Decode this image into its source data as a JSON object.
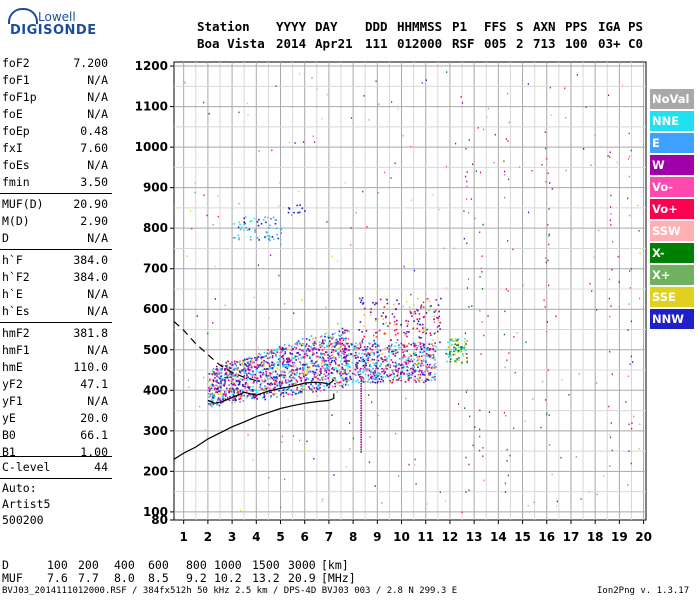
{
  "logo": {
    "brand_top": "Lowell",
    "brand_bottom": "DIGISONDE"
  },
  "header": {
    "labels": [
      "Station",
      "YYYY",
      "DAY",
      "DDD",
      "HHMMSS",
      "P1",
      "FFS",
      "S",
      "AXN",
      "PPS",
      "IGA",
      "PS"
    ],
    "values": [
      "Boa Vista",
      "2014",
      "Apr21",
      "111",
      "012000",
      "RSF",
      "005",
      "2",
      "713",
      "100",
      "03+",
      "C0"
    ]
  },
  "params": [
    {
      "k": "foF2",
      "v": "7.200"
    },
    {
      "k": "foF1",
      "v": "N/A"
    },
    {
      "k": "foF1p",
      "v": "N/A"
    },
    {
      "k": "foE",
      "v": "N/A"
    },
    {
      "k": "foEp",
      "v": "0.48"
    },
    {
      "k": "fxI",
      "v": "7.60"
    },
    {
      "k": "foEs",
      "v": "N/A"
    },
    {
      "k": "fmin",
      "v": "3.50"
    },
    {
      "k": "MUF(D)",
      "v": "20.90"
    },
    {
      "k": "M(D)",
      "v": "2.90"
    },
    {
      "k": "D",
      "v": "N/A"
    },
    {
      "k": "h`F",
      "v": "384.0"
    },
    {
      "k": "h`F2",
      "v": "384.0"
    },
    {
      "k": "h`E",
      "v": "N/A"
    },
    {
      "k": "h`Es",
      "v": "N/A"
    },
    {
      "k": "hmF2",
      "v": "381.8"
    },
    {
      "k": "hmF1",
      "v": "N/A"
    },
    {
      "k": "hmE",
      "v": "110.0"
    },
    {
      "k": "yF2",
      "v": "47.1"
    },
    {
      "k": "yF1",
      "v": "N/A"
    },
    {
      "k": "yE",
      "v": "20.0"
    },
    {
      "k": "B0",
      "v": "66.1"
    },
    {
      "k": "B1",
      "v": "1.00"
    },
    {
      "k": "C-level",
      "v": "44"
    }
  ],
  "auto": [
    "Auto:",
    "Artist5",
    "500200"
  ],
  "muf_table": {
    "d_label": "D",
    "d_values": [
      "100",
      "200",
      "400",
      "600",
      "800",
      "1000",
      "1500",
      "3000",
      "[km]"
    ],
    "muf_label": "MUF",
    "muf_values": [
      "7.6",
      "7.7",
      "8.0",
      "8.5",
      "9.2",
      "10.2",
      "13.2",
      "20.9",
      "[MHz]"
    ]
  },
  "footer": {
    "left": "BVJ03_2014111012000.RSF / 384fx512h 50 kHz 2.5 km / DPS-4D BVJ03 003 / 2.8 N 299.3 E",
    "right": "Ion2Png v. 1.3.17"
  },
  "legend": [
    {
      "label": "NoVal",
      "color": "#a9a9a9"
    },
    {
      "label": "NNE",
      "color": "#22e0f0"
    },
    {
      "label": "E",
      "color": "#3fa0ff"
    },
    {
      "label": "W",
      "color": "#a000a8"
    },
    {
      "label": "Vo-",
      "color": "#ff48b0"
    },
    {
      "label": "Vo+",
      "color": "#ff0050"
    },
    {
      "label": "SSW",
      "color": "#ffb0b0"
    },
    {
      "label": "X-",
      "color": "#008000"
    },
    {
      "label": "X+",
      "color": "#70b060"
    },
    {
      "label": "SSE",
      "color": "#e0d020"
    },
    {
      "label": "NNW",
      "color": "#2020c8"
    }
  ],
  "chart_data": {
    "type": "scatter",
    "title": "",
    "xlabel": "",
    "ylabel": "",
    "xlim": [
      0.6,
      20.1
    ],
    "ylim": [
      80,
      1210
    ],
    "x_ticks": [
      1,
      2,
      3,
      4,
      5,
      6,
      7,
      8,
      9,
      10,
      11,
      12,
      13,
      14,
      15,
      16,
      17,
      18,
      19,
      20
    ],
    "y_ticks": [
      80,
      100,
      200,
      300,
      400,
      500,
      600,
      700,
      800,
      900,
      1000,
      1100,
      1200
    ],
    "grid": true,
    "legend_position": "right",
    "series": [
      {
        "label": "traced-ionogram-trace",
        "color": "#000000",
        "style": "solid",
        "x": [
          2.0,
          2.3,
          2.6,
          3.0,
          3.5,
          4.0,
          4.5,
          5.0,
          5.5,
          6.0,
          6.5,
          6.8,
          7.0,
          7.1,
          7.2
        ],
        "y": [
          375,
          368,
          372,
          382,
          395,
          388,
          398,
          405,
          410,
          418,
          420,
          418,
          415,
          420,
          425
        ]
      },
      {
        "label": "true-height-profile",
        "color": "#000000",
        "style": "solid",
        "x": [
          0.6,
          1.0,
          1.5,
          2.0,
          2.5,
          3.0,
          3.5,
          4.0,
          4.5,
          5.0,
          5.5,
          6.0,
          6.5,
          7.0,
          7.2,
          7.2
        ],
        "y": [
          230,
          245,
          260,
          280,
          295,
          310,
          322,
          335,
          345,
          355,
          362,
          368,
          372,
          375,
          380,
          392
        ]
      },
      {
        "label": "extrapolated-topside",
        "color": "#000000",
        "style": "dashed",
        "x": [
          0.6,
          1.0,
          1.5,
          2.0,
          2.5,
          3.0,
          3.5,
          4.0
        ],
        "y": [
          570,
          548,
          515,
          488,
          462,
          444,
          432,
          424
        ]
      }
    ]
  }
}
